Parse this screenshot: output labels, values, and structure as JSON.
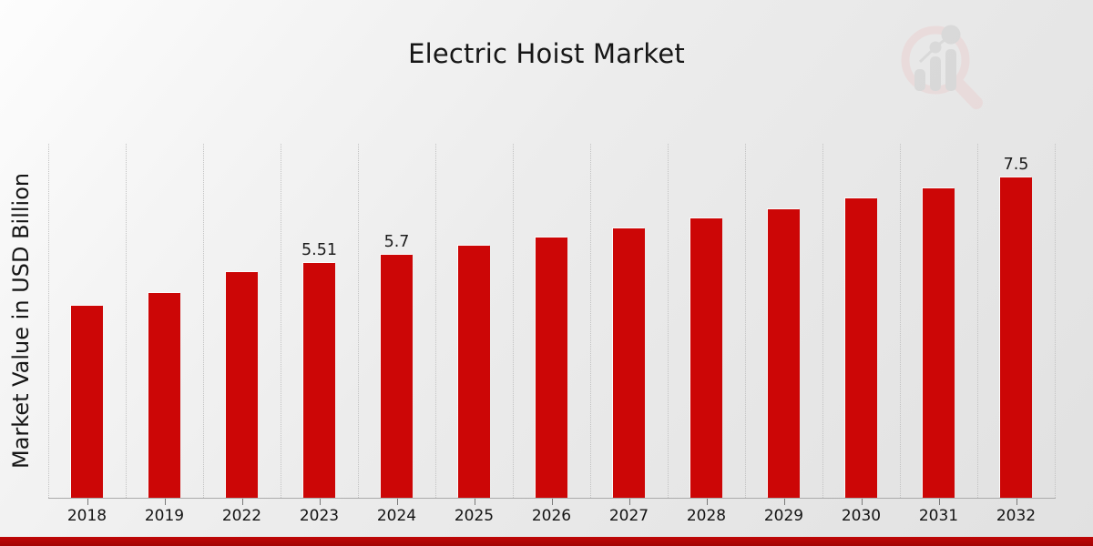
{
  "chart_data": {
    "type": "bar",
    "title": "Electric Hoist Market",
    "xlabel": "",
    "ylabel": "Market Value in USD Billion",
    "categories": [
      "2018",
      "2019",
      "2022",
      "2023",
      "2024",
      "2025",
      "2026",
      "2027",
      "2028",
      "2029",
      "2030",
      "2031",
      "2032"
    ],
    "values": [
      4.5,
      4.8,
      5.3,
      5.51,
      5.7,
      5.9,
      6.11,
      6.32,
      6.54,
      6.77,
      7.01,
      7.25,
      7.5
    ],
    "data_labels": {
      "2023": "5.51",
      "2024": "5.7",
      "2032": "7.5"
    },
    "ylim": [
      0,
      8.3
    ],
    "grid": "vertical-dotted",
    "legend": "none",
    "bar_color": "#cc0606"
  },
  "colors": {
    "bar": "#cc0606",
    "accent_band_top": "#bf0707",
    "accent_band_bottom": "#a30404",
    "grid": "#c2c2c2",
    "axis": "#ababab",
    "text": "#161616",
    "logo_pink": "#ead2d2",
    "logo_gray": "#cdcdcd"
  }
}
